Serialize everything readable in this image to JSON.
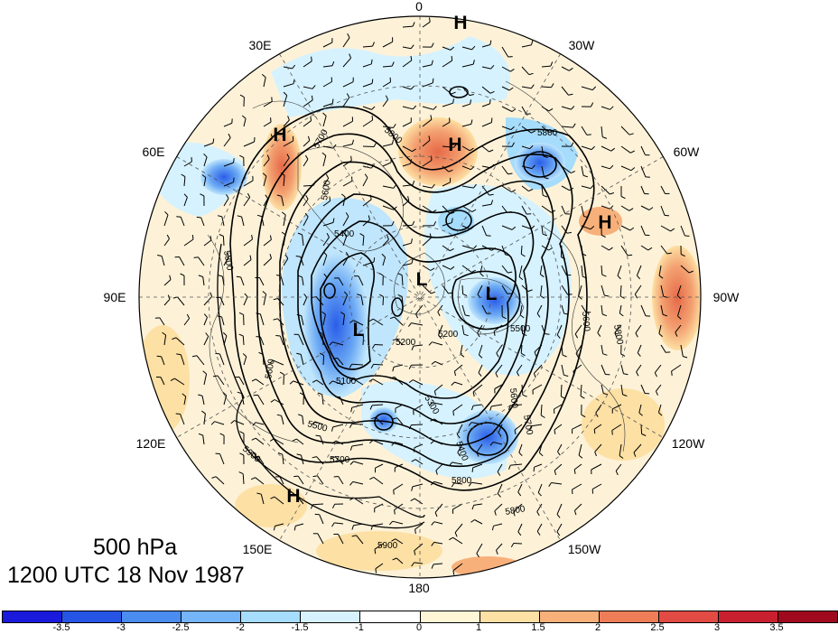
{
  "map": {
    "level_label": "500 hPa",
    "time_label": "1200 UTC 18 Nov 1987",
    "longitude_labels": [
      "0",
      "30W",
      "60W",
      "90W",
      "120W",
      "150W",
      "180",
      "150E",
      "120E",
      "90E",
      "60E",
      "30E"
    ],
    "contour_labels": [
      "5800",
      "5700",
      "5600",
      "5500",
      "5400",
      "5300",
      "5200",
      "5100",
      "5900"
    ],
    "pressure_markers": [
      "H",
      "H",
      "H",
      "H",
      "H",
      "L",
      "L",
      "L"
    ],
    "colorbar": {
      "ticks": [
        "-3.5",
        "-3",
        "-2.5",
        "-2",
        "-1.5",
        "-1",
        "0",
        "1",
        "1.5",
        "2",
        "2.5",
        "3",
        "3.5"
      ],
      "colors": [
        "#1a1adc",
        "#2655e6",
        "#4a8cf0",
        "#74b4f8",
        "#a6dcfc",
        "#d6f2fe",
        "#ffffff",
        "#fff6d6",
        "#fde0a4",
        "#f8b07a",
        "#ef7e58",
        "#e24a44",
        "#c8202e",
        "#a00a1e"
      ]
    },
    "colors": {
      "contour": "#000000",
      "ocean_background": "#fdf2d8"
    }
  }
}
